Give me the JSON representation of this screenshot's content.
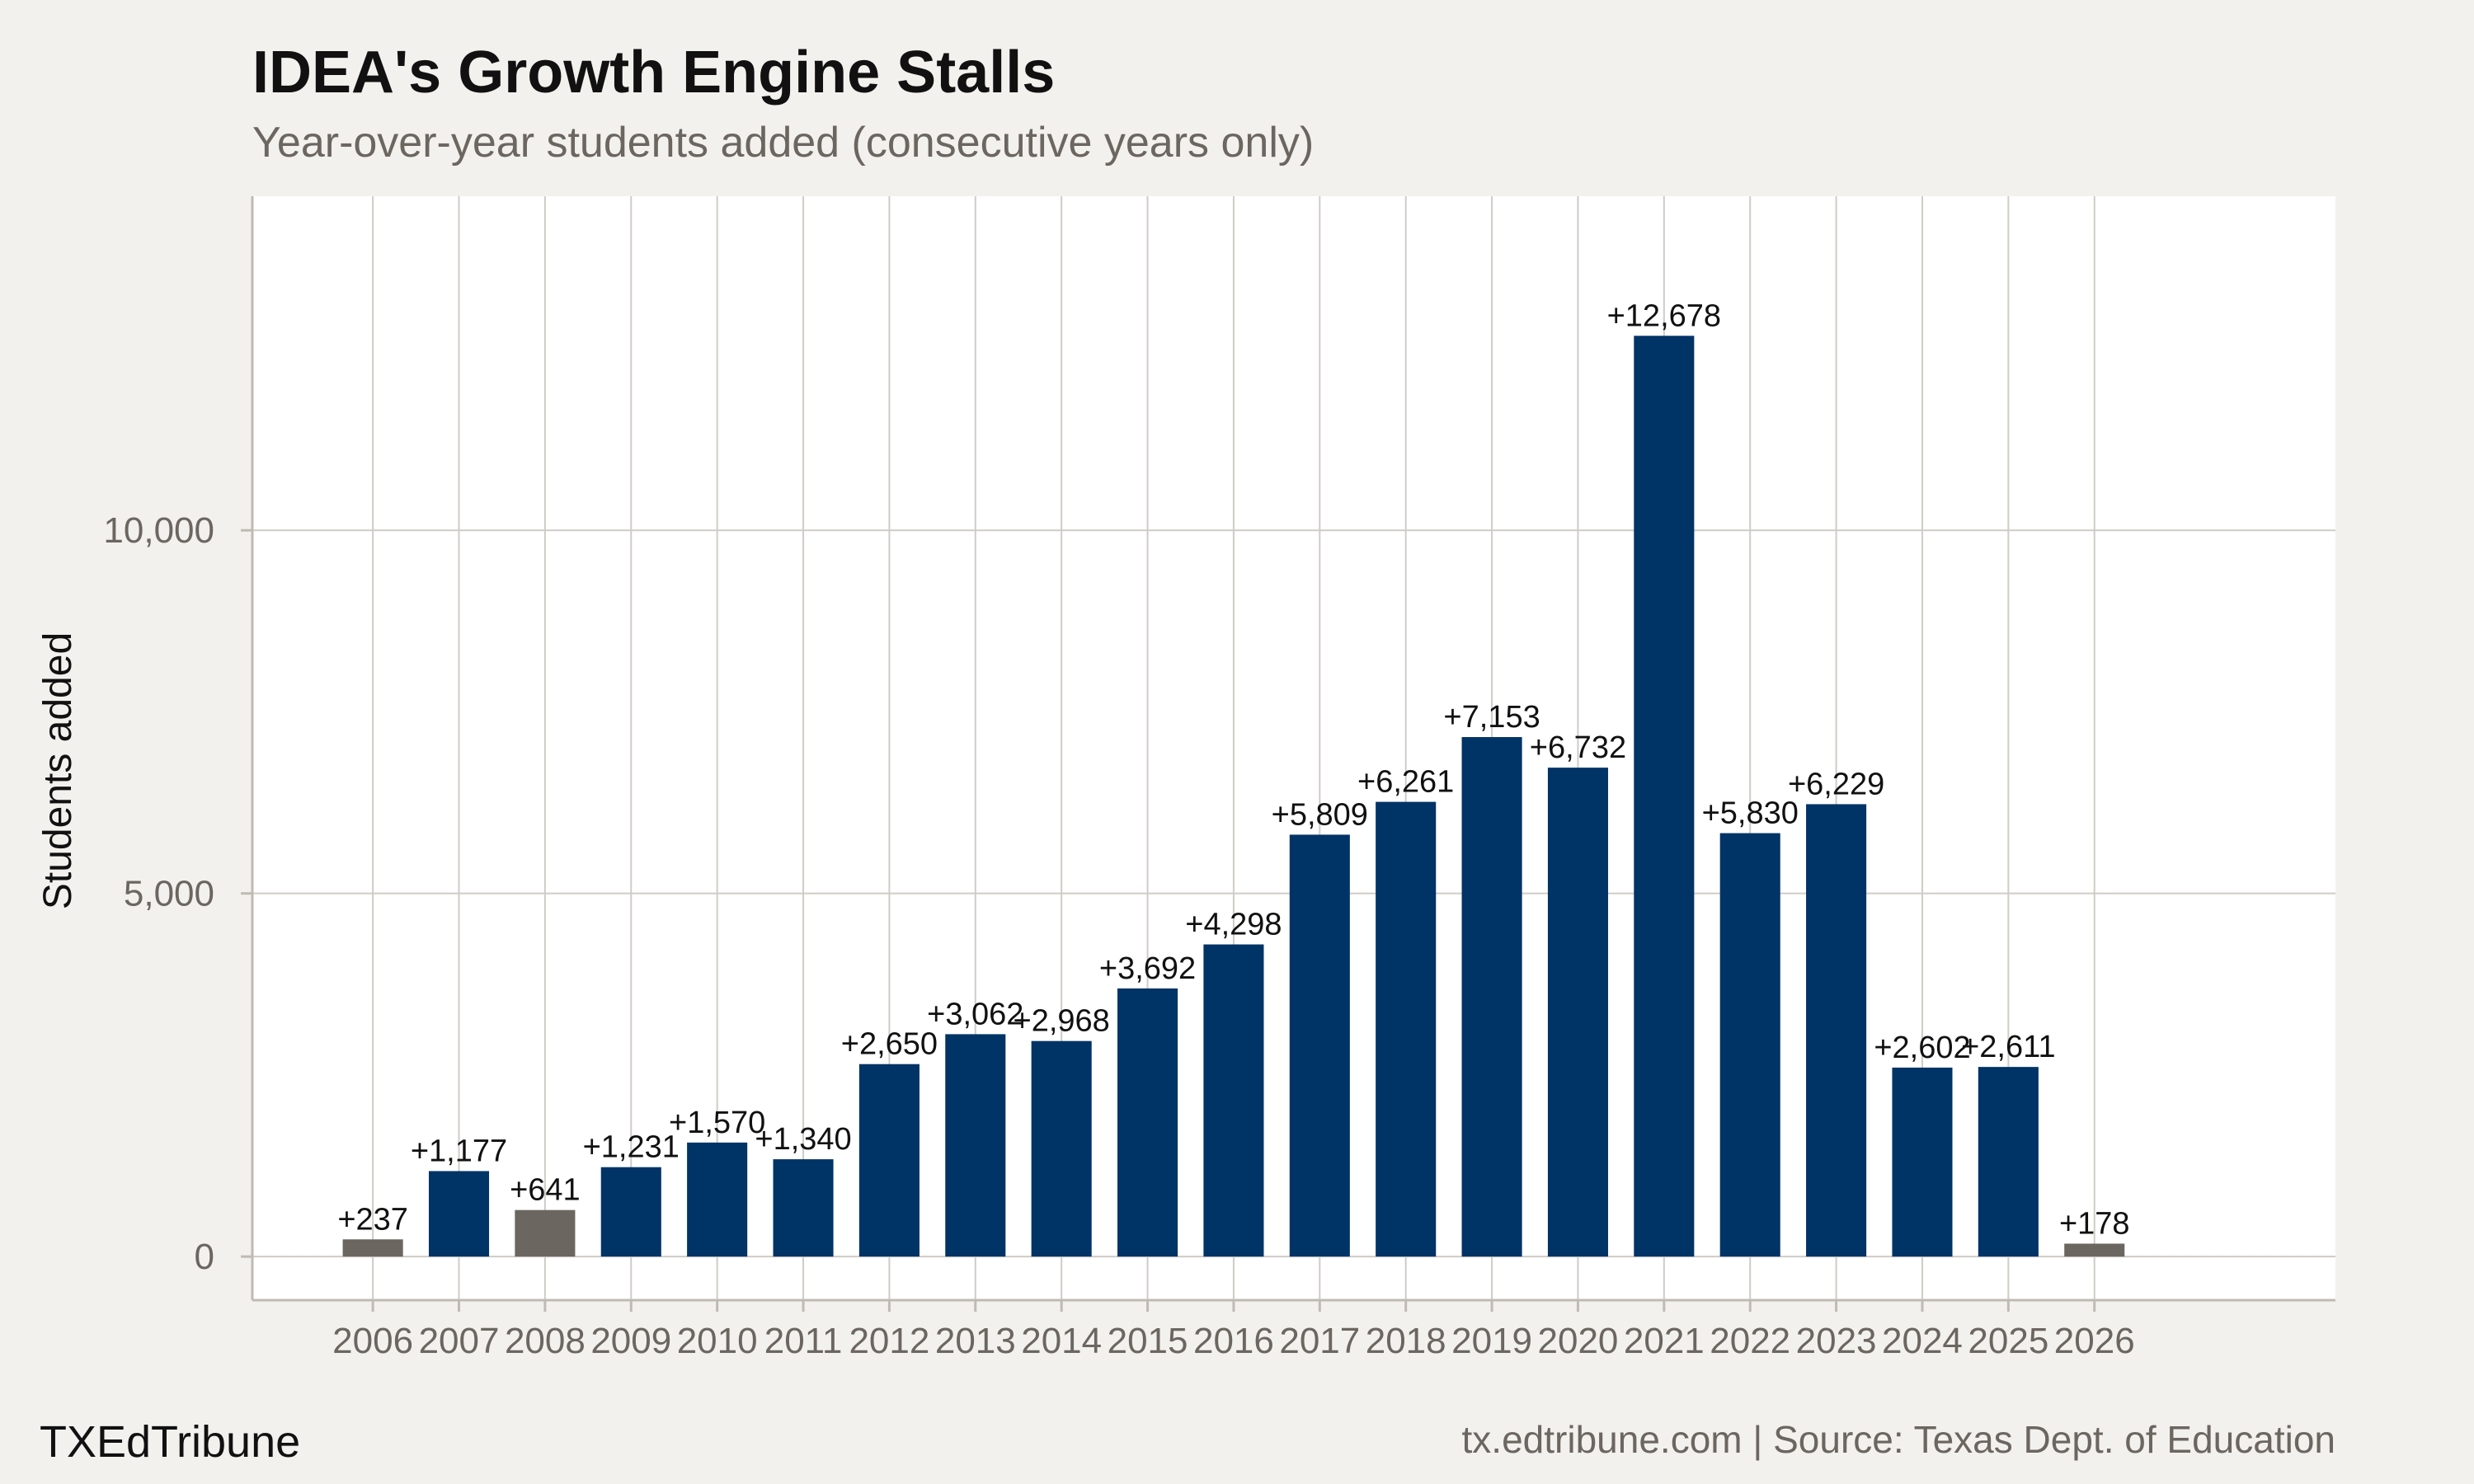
{
  "chart_data": {
    "type": "bar",
    "title": "IDEA's Growth Engine Stalls",
    "subtitle": "Year-over-year students added (consecutive years only)",
    "ylabel": "Students added",
    "xlabel": "",
    "categories": [
      "2006",
      "2007",
      "2008",
      "2009",
      "2010",
      "2011",
      "2012",
      "2013",
      "2014",
      "2015",
      "2016",
      "2017",
      "2018",
      "2019",
      "2020",
      "2021",
      "2022",
      "2023",
      "2024",
      "2025",
      "2026"
    ],
    "values": [
      237,
      1177,
      641,
      1231,
      1570,
      1340,
      2650,
      3062,
      2968,
      3692,
      4298,
      5809,
      6261,
      7153,
      6732,
      12678,
      5830,
      6229,
      2602,
      2611,
      178
    ],
    "labels": [
      "+237",
      "+1,177",
      "+641",
      "+1,231",
      "+1,570",
      "+1,340",
      "+2,650",
      "+3,062",
      "+2,968",
      "+3,692",
      "+4,298",
      "+5,809",
      "+6,261",
      "+7,153",
      "+6,732",
      "+12,678",
      "+5,830",
      "+6,229",
      "+2,602",
      "+2,611",
      "+178"
    ],
    "highlight": [
      true,
      false,
      true,
      false,
      false,
      false,
      false,
      false,
      false,
      false,
      false,
      false,
      false,
      false,
      false,
      false,
      false,
      false,
      false,
      false,
      true
    ],
    "colors": {
      "main": "#003366",
      "highlight": "#6b6660",
      "panel": "#ffffff",
      "grid": "#cfccc6",
      "background": "#f3f1ed"
    },
    "yticks": [
      0,
      5000,
      10000
    ],
    "ytick_labels": [
      "0",
      "5,000",
      "10,000"
    ],
    "ylim": [
      -600,
      14600
    ],
    "xlim": [
      2004.6,
      2028.8
    ],
    "grid": true,
    "legend": "none"
  },
  "footer": {
    "brand": "TXEdTribune",
    "source": "tx.edtribune.com | Source: Texas Dept. of Education"
  }
}
